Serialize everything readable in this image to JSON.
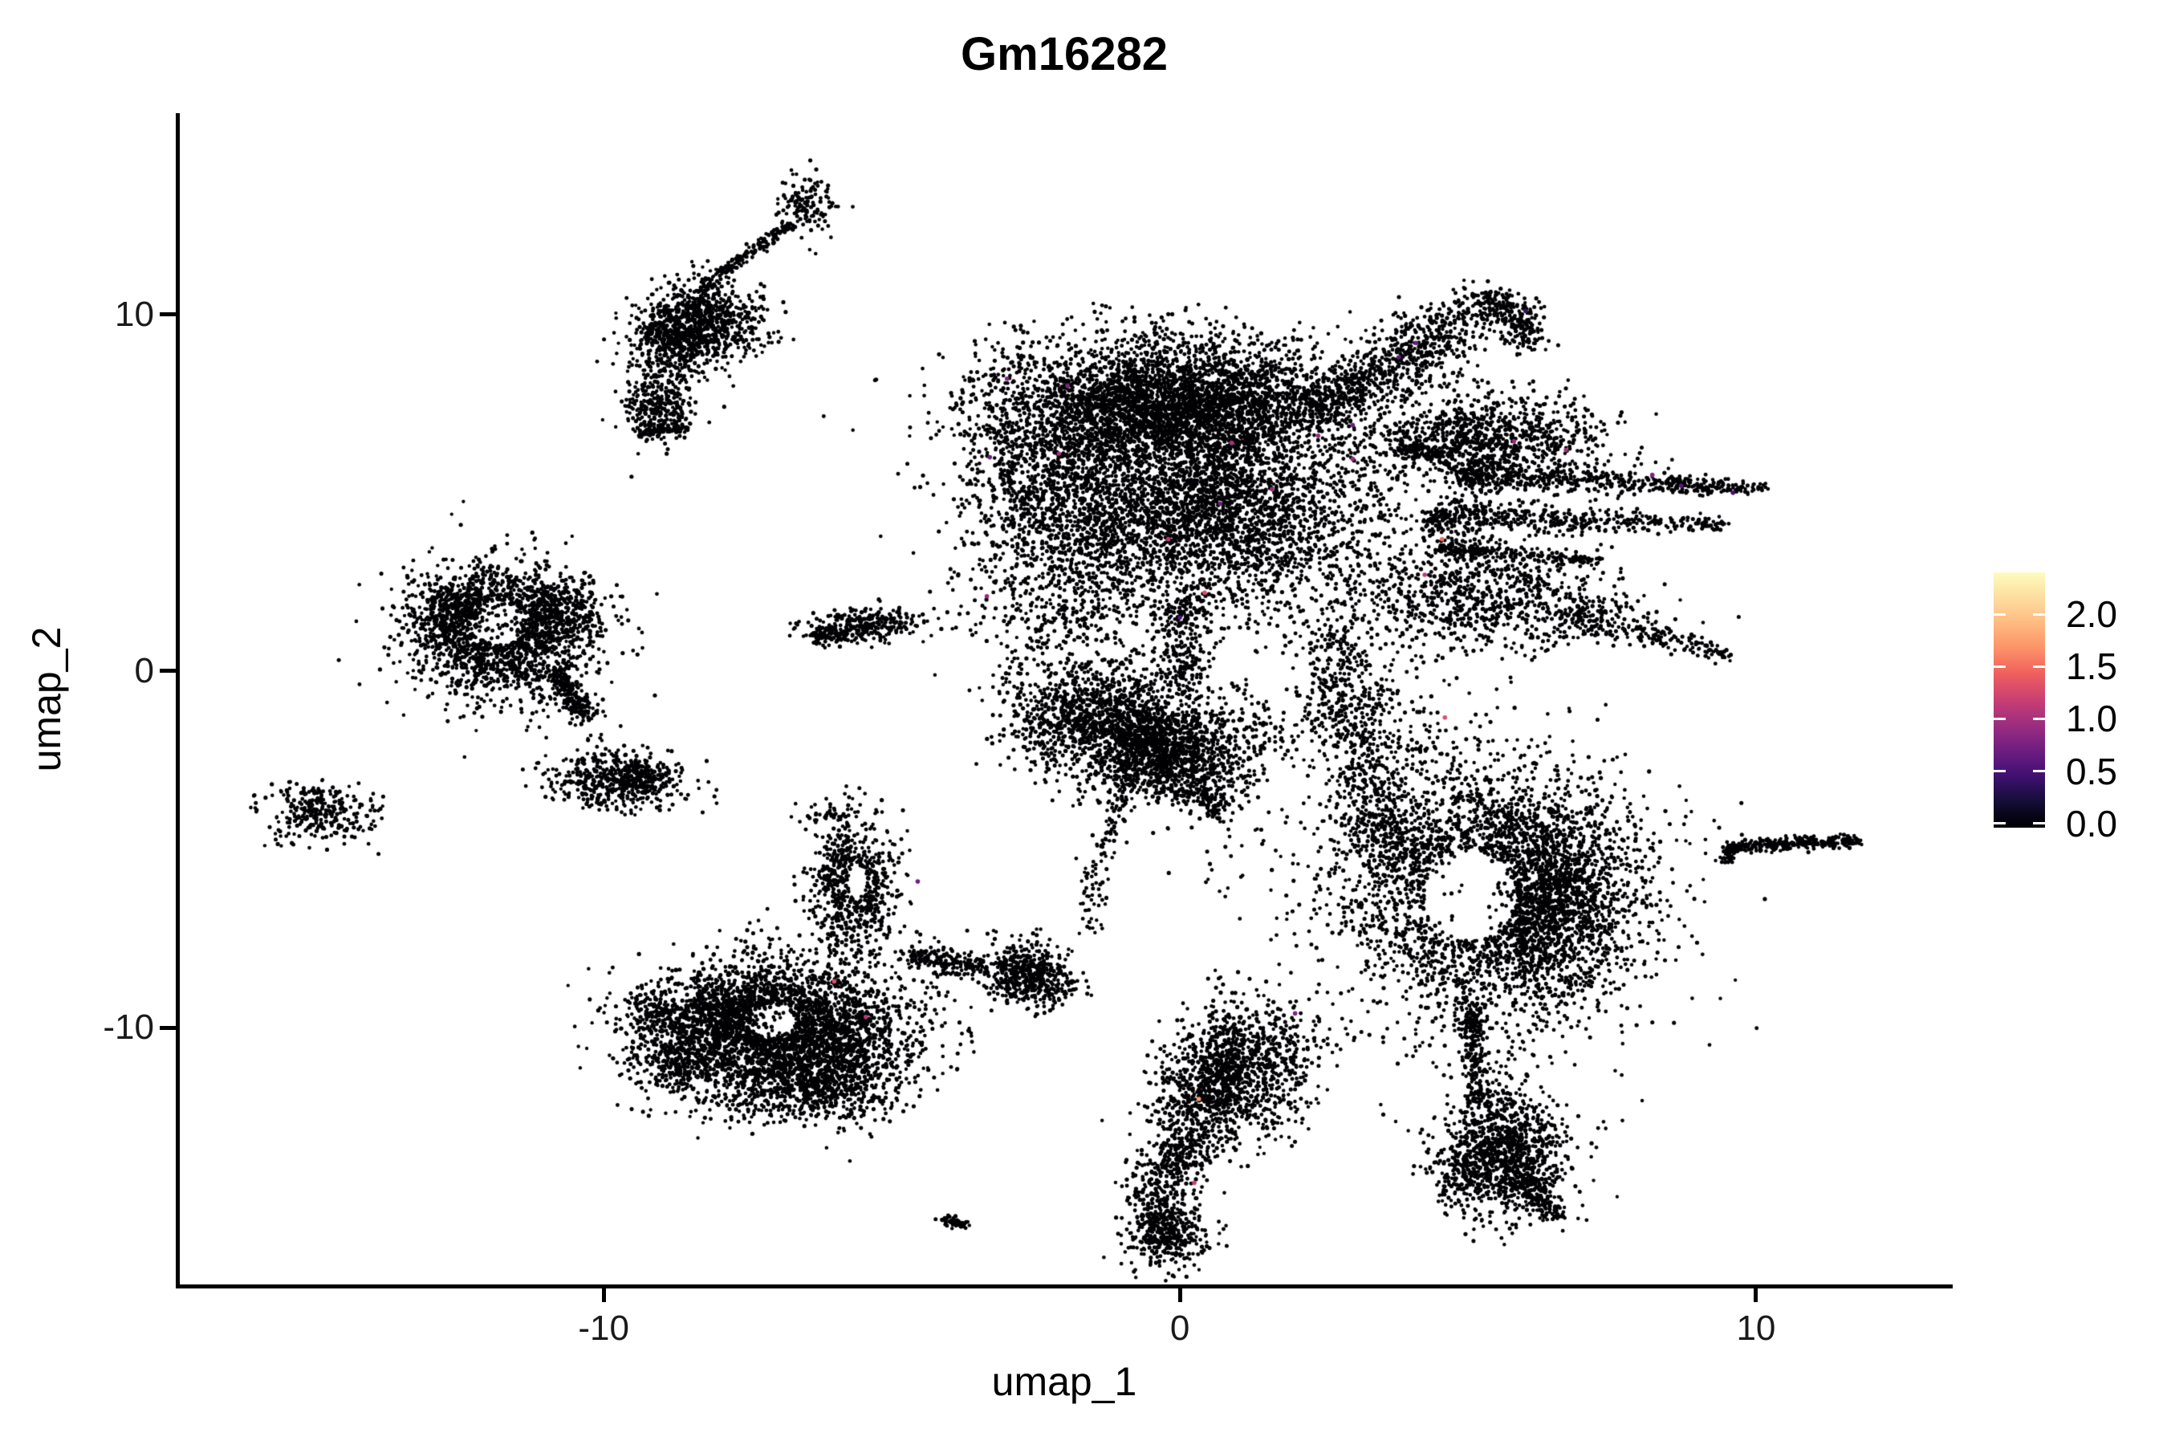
{
  "title": "Gm16282",
  "axes": {
    "x": {
      "label": "umap_1",
      "ticks": [
        {
          "value": -10,
          "label": "-10"
        },
        {
          "value": 0,
          "label": "0"
        },
        {
          "value": 10,
          "label": "10"
        }
      ]
    },
    "y": {
      "label": "umap_2",
      "ticks": [
        {
          "value": 10,
          "label": "10"
        },
        {
          "value": 0,
          "label": "0"
        },
        {
          "value": -10,
          "label": "-10"
        }
      ]
    }
  },
  "legend": {
    "tick_labels": [
      "2.0",
      "1.5",
      "1.0",
      "0.5",
      "0.0"
    ],
    "tick_values": [
      2.0,
      1.5,
      1.0,
      0.5,
      0.0
    ],
    "bar_value_min": -0.04,
    "bar_value_max": 2.4,
    "colormap_name": "magma",
    "colormap_domain": [
      0,
      2.4
    ],
    "colormap_stops": [
      [
        0.0,
        "#000004"
      ],
      [
        0.1,
        "#180f3e"
      ],
      [
        0.2,
        "#451077"
      ],
      [
        0.3,
        "#721f81"
      ],
      [
        0.4,
        "#9f2f7f"
      ],
      [
        0.5,
        "#cd4071"
      ],
      [
        0.6,
        "#f1605d"
      ],
      [
        0.7,
        "#fd9567"
      ],
      [
        0.8,
        "#febb81"
      ],
      [
        0.9,
        "#fddea0"
      ],
      [
        1.0,
        "#fcfdbf"
      ]
    ]
  },
  "chart_data": {
    "type": "scatter",
    "title": "Gm16282",
    "xlabel": "umap_1",
    "ylabel": "umap_2",
    "x_ticks": [
      -10,
      0,
      10
    ],
    "y_ticks": [
      -10,
      0,
      10
    ],
    "x_domain": [
      -17.4,
      13.4
    ],
    "y_domain": [
      -17.2,
      15.6
    ],
    "grid": false,
    "legend_position": "right",
    "point_color": "#000004",
    "point_radius_px": 2.4,
    "description": "UMAP feature plot of gene Gm16282 expression across ~30000 single cells; nearly all cells at 0.0 expression (black), a few scattered cells with values ~0.4-1.7 (purple/magenta/salmon).",
    "clusters": [
      {
        "name": "comet-tip",
        "type": "gauss",
        "n": 140,
        "cx": -6.45,
        "cy": 13.05,
        "sx": 0.28,
        "sy": 0.42
      },
      {
        "name": "comet-tail",
        "type": "strand",
        "n": 170,
        "x1": -6.75,
        "y1": 12.55,
        "x2": -8.35,
        "y2": 10.7,
        "w": 0.07
      },
      {
        "name": "comet-main",
        "type": "gauss",
        "n": 800,
        "cx": -8.25,
        "cy": 9.8,
        "sx": 0.5,
        "sy": 0.55
      },
      {
        "name": "comet-main2",
        "type": "gauss",
        "n": 260,
        "cx": -8.85,
        "cy": 9.3,
        "sx": 0.32,
        "sy": 0.45
      },
      {
        "name": "comet-scatter",
        "type": "gauss",
        "n": 150,
        "cx": -8.9,
        "cy": 8.3,
        "sx": 0.38,
        "sy": 0.75
      },
      {
        "name": "comet-lowblob",
        "type": "gauss",
        "n": 240,
        "cx": -9.1,
        "cy": 7.3,
        "sx": 0.3,
        "sy": 0.45
      },
      {
        "name": "comet-lowdash",
        "type": "strand",
        "n": 55,
        "x1": -9.4,
        "y1": 6.65,
        "x2": -8.55,
        "y2": 6.8,
        "w": 0.07
      },
      {
        "name": "fan-body",
        "type": "gauss",
        "n": 1500,
        "cx": -11.75,
        "cy": 1.1,
        "sx": 0.78,
        "sy": 0.95,
        "hole": {
          "cx": -11.8,
          "cy": 1.35,
          "rx": 0.5,
          "ry": 0.6
        }
      },
      {
        "name": "fan-rim-left",
        "type": "gauss",
        "n": 330,
        "cx": -12.6,
        "cy": 1.6,
        "sx": 0.42,
        "sy": 0.5
      },
      {
        "name": "fan-rim-right",
        "type": "gauss",
        "n": 330,
        "cx": -10.9,
        "cy": 1.6,
        "sx": 0.42,
        "sy": 0.5
      },
      {
        "name": "fan-tail",
        "type": "strand",
        "n": 200,
        "x1": -10.85,
        "y1": 0.1,
        "x2": -10.3,
        "y2": -1.35,
        "w": 0.14
      },
      {
        "name": "fan-trail-dots",
        "type": "strand",
        "n": 16,
        "x1": -10.25,
        "y1": -1.55,
        "x2": -9.95,
        "y2": -2.6,
        "w": 0.12
      },
      {
        "name": "island-blob",
        "type": "gauss",
        "n": 420,
        "cx": -9.8,
        "cy": -3.15,
        "sx": 0.62,
        "sy": 0.38,
        "rot": -15
      },
      {
        "name": "island-blob2",
        "type": "gauss",
        "n": 140,
        "cx": -9.35,
        "cy": -2.85,
        "sx": 0.28,
        "sy": 0.28
      },
      {
        "name": "far-left-blob",
        "type": "gauss",
        "n": 280,
        "cx": -15.0,
        "cy": -3.95,
        "sx": 0.5,
        "sy": 0.42
      },
      {
        "name": "mid-streak",
        "type": "gauss",
        "n": 300,
        "cx": -5.5,
        "cy": 1.25,
        "sx": 0.5,
        "sy": 0.26,
        "rot": 10
      },
      {
        "name": "mid-streak-tip",
        "type": "strand",
        "n": 50,
        "x1": -6.35,
        "y1": 0.9,
        "x2": -5.95,
        "y2": 1.15,
        "w": 0.1
      },
      {
        "name": "central-top-band",
        "type": "gauss",
        "n": 3600,
        "cx": -0.1,
        "cy": 7.5,
        "sx": 1.5,
        "sy": 0.8
      },
      {
        "name": "central-body",
        "type": "gauss",
        "n": 3000,
        "cx": 0.1,
        "cy": 4.7,
        "sx": 1.55,
        "sy": 1.35
      },
      {
        "name": "central-left-lobe",
        "type": "gauss",
        "n": 900,
        "cx": -2.3,
        "cy": 5.6,
        "sx": 0.75,
        "sy": 1.5
      },
      {
        "name": "central-mid-scatter",
        "type": "gauss",
        "n": 650,
        "cx": 1.4,
        "cy": 3.6,
        "sx": 1.3,
        "sy": 1.5
      },
      {
        "name": "central-lower-scatter",
        "type": "gauss",
        "n": 500,
        "cx": -2.0,
        "cy": 1.8,
        "sx": 0.85,
        "sy": 1.2
      },
      {
        "name": "central-top-scatter",
        "type": "gauss",
        "n": 90,
        "cx": 0.3,
        "cy": 9.4,
        "sx": 1.2,
        "sy": 0.5
      },
      {
        "name": "central-arm",
        "type": "strand",
        "n": 650,
        "x1": 2.3,
        "y1": 7.3,
        "x2": 5.2,
        "y2": 10.4,
        "mx": 3.5,
        "my": 8.3,
        "w": 0.34
      },
      {
        "name": "central-arm-hook",
        "type": "strand",
        "n": 240,
        "x1": 5.2,
        "y1": 10.4,
        "x2": 5.85,
        "y2": 9.0,
        "mx": 6.15,
        "my": 10.35,
        "w": 0.22
      },
      {
        "name": "central-arm-scatter",
        "type": "gauss",
        "n": 130,
        "cx": 4.2,
        "cy": 8.7,
        "sx": 0.6,
        "sy": 0.7
      },
      {
        "name": "right-wing",
        "type": "gauss",
        "n": 950,
        "cx": 5.3,
        "cy": 6.5,
        "sx": 1.0,
        "sy": 0.6
      },
      {
        "name": "wing-dash",
        "type": "strand",
        "n": 90,
        "x1": 3.75,
        "y1": 6.2,
        "x2": 4.6,
        "y2": 6.05,
        "w": 0.12
      },
      {
        "name": "right-spike1",
        "type": "strand",
        "n": 600,
        "x1": 4.9,
        "y1": 5.5,
        "x2": 10.2,
        "y2": 5.1,
        "w": 0.24,
        "taper": true
      },
      {
        "name": "right-spike2",
        "type": "strand",
        "n": 500,
        "x1": 4.4,
        "y1": 4.35,
        "x2": 9.55,
        "y2": 4.1,
        "w": 0.26,
        "taper": true
      },
      {
        "name": "right-spike3",
        "type": "strand",
        "n": 220,
        "x1": 4.6,
        "y1": 3.45,
        "x2": 7.3,
        "y2": 3.1,
        "w": 0.18,
        "taper": true
      },
      {
        "name": "right-wedge",
        "type": "gauss",
        "n": 850,
        "cx": 5.2,
        "cy": 2.1,
        "sx": 1.15,
        "sy": 0.75
      },
      {
        "name": "right-wedge-tip",
        "type": "strand",
        "n": 260,
        "x1": 6.8,
        "y1": 1.6,
        "x2": 9.6,
        "y2": 0.4,
        "w": 0.28,
        "taper": true
      },
      {
        "name": "leg-down",
        "type": "strand",
        "n": 520,
        "x1": 2.6,
        "y1": 1.2,
        "x2": 3.8,
        "y2": -5.2,
        "mx": 2.85,
        "my": -2.0,
        "w": 0.33
      },
      {
        "name": "leg-scatter",
        "type": "gauss",
        "n": 220,
        "cx": 3.3,
        "cy": -1.4,
        "sx": 0.7,
        "sy": 0.9
      },
      {
        "name": "neck",
        "type": "strand",
        "n": 220,
        "x1": 0.15,
        "y1": 2.2,
        "x2": 0.0,
        "y2": -0.3,
        "w": 0.22
      },
      {
        "name": "below-body-blob",
        "type": "gauss",
        "n": 1400,
        "cx": -1.0,
        "cy": -1.6,
        "sx": 0.75,
        "sy": 0.8
      },
      {
        "name": "below-body-blob2",
        "type": "gauss",
        "n": 800,
        "cx": -0.1,
        "cy": -2.5,
        "sx": 0.6,
        "sy": 0.65
      },
      {
        "name": "below-body-left",
        "type": "gauss",
        "n": 240,
        "cx": -2.2,
        "cy": -1.2,
        "sx": 0.45,
        "sy": 0.7
      },
      {
        "name": "below-body-tip",
        "type": "strand",
        "n": 110,
        "x1": 0.2,
        "y1": -3.2,
        "x2": 0.75,
        "y2": -4.0,
        "w": 0.18
      },
      {
        "name": "below-body-right",
        "type": "gauss",
        "n": 130,
        "cx": 1.3,
        "cy": -1.8,
        "sx": 0.5,
        "sy": 0.7
      },
      {
        "name": "strand-downleft",
        "type": "strand",
        "n": 150,
        "x1": -0.35,
        "y1": -1.2,
        "x2": -1.6,
        "y2": -7.3,
        "mx": -1.35,
        "my": -3.8,
        "w": 0.13
      },
      {
        "name": "mid-gap-dots",
        "type": "gauss",
        "n": 60,
        "cx": 1.6,
        "cy": -5.6,
        "sx": 1.0,
        "sy": 1.0
      },
      {
        "name": "ring-body",
        "type": "gauss",
        "n": 3000,
        "cx": 5.5,
        "cy": -6.3,
        "sx": 1.25,
        "sy": 1.8,
        "hole": {
          "cx": 5.05,
          "cy": -6.3,
          "rx": 0.8,
          "ry": 1.25
        }
      },
      {
        "name": "ring-rim-right",
        "type": "gauss",
        "n": 650,
        "cx": 6.5,
        "cy": -6.5,
        "sx": 0.5,
        "sy": 1.4
      },
      {
        "name": "ring-left-scatter",
        "type": "gauss",
        "n": 230,
        "cx": 3.6,
        "cy": -4.6,
        "sx": 0.6,
        "sy": 1.1
      },
      {
        "name": "ring-bottom-tail",
        "type": "strand",
        "n": 100,
        "x1": 5.0,
        "y1": -9.2,
        "x2": 5.1,
        "y2": -10.3,
        "w": 0.12
      },
      {
        "name": "right-streak",
        "type": "strand",
        "n": 300,
        "x1": 9.5,
        "y1": -4.95,
        "x2": 11.75,
        "y2": -4.75,
        "w": 0.09
      },
      {
        "name": "right-streak-dip",
        "type": "strand",
        "n": 45,
        "x1": 9.45,
        "y1": -5.35,
        "x2": 9.6,
        "y2": -4.95,
        "w": 0.07
      },
      {
        "name": "comma-head",
        "type": "gauss",
        "n": 1000,
        "cx": 1.0,
        "cy": -11.2,
        "sx": 0.58,
        "sy": 0.95
      },
      {
        "name": "comma-head2",
        "type": "gauss",
        "n": 320,
        "cx": 0.3,
        "cy": -12.2,
        "sx": 0.45,
        "sy": 0.7
      },
      {
        "name": "comma-tail",
        "type": "strand",
        "n": 480,
        "x1": 0.4,
        "y1": -13.0,
        "x2": -0.3,
        "y2": -16.2,
        "mx": -0.75,
        "my": -14.4,
        "w": 0.3
      },
      {
        "name": "comma-tail-blob",
        "type": "gauss",
        "n": 260,
        "cx": -0.15,
        "cy": -15.8,
        "sx": 0.35,
        "sy": 0.5
      },
      {
        "name": "comma-scatter",
        "type": "gauss",
        "n": 80,
        "cx": 1.9,
        "cy": -10.2,
        "sx": 0.5,
        "sy": 0.5
      },
      {
        "name": "br-strand",
        "type": "strand",
        "n": 130,
        "x1": 5.1,
        "y1": -10.3,
        "x2": 5.2,
        "y2": -12.2,
        "w": 0.11
      },
      {
        "name": "br-main",
        "type": "gauss",
        "n": 1100,
        "cx": 5.6,
        "cy": -13.5,
        "sx": 0.55,
        "sy": 0.85
      },
      {
        "name": "br-tip",
        "type": "strand",
        "n": 150,
        "x1": 6.0,
        "y1": -14.3,
        "x2": 6.6,
        "y2": -15.4,
        "w": 0.22,
        "taper": true
      },
      {
        "name": "br-left-dots",
        "type": "gauss",
        "n": 60,
        "cx": 4.8,
        "cy": -14.3,
        "sx": 0.25,
        "sy": 0.4
      },
      {
        "name": "bl-vertical-arm",
        "type": "gauss",
        "n": 650,
        "cx": -5.65,
        "cy": -6.0,
        "sx": 0.38,
        "sy": 0.95,
        "hole": {
          "cx": -5.6,
          "cy": -5.9,
          "rx": 0.16,
          "ry": 0.45
        }
      },
      {
        "name": "bl-main",
        "type": "gauss",
        "n": 3100,
        "cx": -6.85,
        "cy": -10.1,
        "sx": 1.1,
        "sy": 0.98,
        "hole": {
          "cx": -7.1,
          "cy": -9.8,
          "rx": 0.42,
          "ry": 0.45
        }
      },
      {
        "name": "bl-main2",
        "type": "gauss",
        "n": 350,
        "cx": -7.9,
        "cy": -9.5,
        "sx": 0.5,
        "sy": 0.5
      },
      {
        "name": "bl-lobe",
        "type": "gauss",
        "n": 300,
        "cx": -8.6,
        "cy": -10.9,
        "sx": 0.45,
        "sy": 0.5
      },
      {
        "name": "bl-bottom",
        "type": "gauss",
        "n": 550,
        "cx": -6.3,
        "cy": -11.6,
        "sx": 0.7,
        "sy": 0.5
      },
      {
        "name": "bl-west-spur",
        "type": "gauss",
        "n": 150,
        "cx": -9.15,
        "cy": -9.6,
        "sx": 0.33,
        "sy": 0.3
      },
      {
        "name": "bl-right-arm",
        "type": "strand",
        "n": 200,
        "x1": -4.7,
        "y1": -7.95,
        "x2": -3.45,
        "y2": -8.35,
        "w": 0.18
      },
      {
        "name": "bl-round-blob",
        "type": "gauss",
        "n": 520,
        "cx": -2.65,
        "cy": -8.5,
        "sx": 0.33,
        "sy": 0.42
      },
      {
        "name": "bl-round-trail",
        "type": "gauss",
        "n": 25,
        "cx": -1.95,
        "cy": -8.85,
        "sx": 0.22,
        "sy": 0.18
      },
      {
        "name": "bl-top-dots",
        "type": "gauss",
        "n": 35,
        "cx": -6.1,
        "cy": -4.0,
        "sx": 0.3,
        "sy": 0.22
      },
      {
        "name": "tiny-dash",
        "type": "strand",
        "n": 55,
        "x1": -4.15,
        "y1": -15.35,
        "x2": -3.7,
        "y2": -15.55,
        "w": 0.07
      }
    ],
    "colored_points": [
      {
        "x": -3.0,
        "y": 8.2,
        "v": 0.8
      },
      {
        "x": -1.95,
        "y": 8.0,
        "v": 0.8
      },
      {
        "x": -2.1,
        "y": 6.1,
        "v": 1.0
      },
      {
        "x": -3.3,
        "y": 6.0,
        "v": 0.7
      },
      {
        "x": -3.35,
        "y": 2.1,
        "v": 0.9
      },
      {
        "x": 0.9,
        "y": 6.4,
        "v": 1.0
      },
      {
        "x": 2.4,
        "y": 6.6,
        "v": 0.9
      },
      {
        "x": 3.0,
        "y": 6.9,
        "v": 0.7
      },
      {
        "x": 3.0,
        "y": 5.95,
        "v": 0.9
      },
      {
        "x": 0.7,
        "y": 4.7,
        "v": 0.7
      },
      {
        "x": -0.2,
        "y": 3.7,
        "v": 1.1
      },
      {
        "x": 1.6,
        "y": 5.1,
        "v": 0.9
      },
      {
        "x": 0.0,
        "y": 1.5,
        "v": 0.55
      },
      {
        "x": 0.43,
        "y": 2.2,
        "v": 1.3
      },
      {
        "x": 4.1,
        "y": 9.2,
        "v": 0.7
      },
      {
        "x": 3.8,
        "y": 8.8,
        "v": 0.6
      },
      {
        "x": 6.0,
        "y": 10.1,
        "v": 0.4
      },
      {
        "x": 5.8,
        "y": 6.45,
        "v": 0.9
      },
      {
        "x": 6.7,
        "y": 6.2,
        "v": 1.0
      },
      {
        "x": 8.2,
        "y": 5.5,
        "v": 0.8
      },
      {
        "x": 8.7,
        "y": 5.2,
        "v": 0.6
      },
      {
        "x": 9.6,
        "y": 5.0,
        "v": 0.45
      },
      {
        "x": 4.55,
        "y": 3.7,
        "v": 1.5
      },
      {
        "x": 4.25,
        "y": 2.7,
        "v": 1.1
      },
      {
        "x": 4.6,
        "y": -1.3,
        "v": 1.3
      },
      {
        "x": 2.0,
        "y": -9.6,
        "v": 0.8
      },
      {
        "x": 0.33,
        "y": -12.0,
        "v": 1.7
      },
      {
        "x": 0.25,
        "y": -14.35,
        "v": 1.2
      },
      {
        "x": -5.45,
        "y": -9.7,
        "v": 1.1
      },
      {
        "x": -6.0,
        "y": -8.7,
        "v": 1.3
      },
      {
        "x": -4.55,
        "y": -5.9,
        "v": 0.7
      }
    ]
  }
}
